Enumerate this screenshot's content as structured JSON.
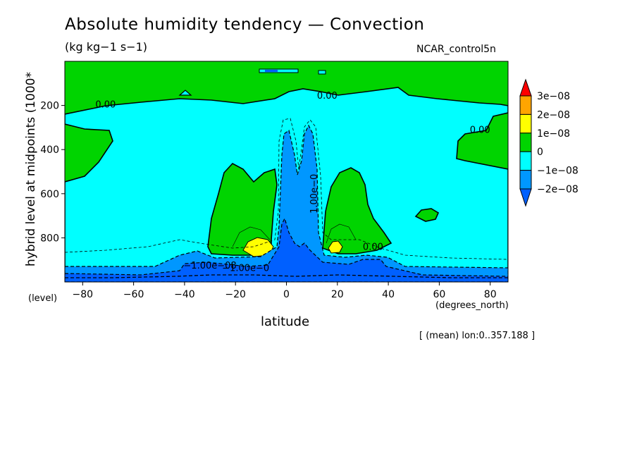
{
  "chart_data": {
    "type": "contour",
    "title": "Absolute humidity tendency — Convection",
    "subtitle": "(kg kg−1 s−1)",
    "dataset": "NCAR_control5n",
    "xlabel": "latitude",
    "x_unit": "(degrees_north)",
    "ylabel": "hybrid level at midpoints (1000*",
    "y_unit": "(level)",
    "note": "[ (mean) lon:0..357.188 ]",
    "xlim": [
      -87,
      87
    ],
    "ylim": [
      1000,
      0
    ],
    "x_ticks": [
      -80,
      -60,
      -40,
      -20,
      0,
      20,
      40,
      60,
      80
    ],
    "x_tick_labels": [
      "−80",
      "−60",
      "−40",
      "−20",
      "0",
      "20",
      "40",
      "60",
      "80"
    ],
    "y_ticks": [
      200,
      400,
      600,
      800
    ],
    "y_tick_labels": [
      "200",
      "400",
      "600",
      "800"
    ],
    "colorbar": {
      "labels": [
        "3e−08",
        "2e−08",
        "1e−08",
        "0",
        "−1e−08",
        "−2e−08"
      ],
      "colors": [
        "#ff0000",
        "#ffa500",
        "#ffff00",
        "#00d400",
        "#00ffff",
        "#0097ff",
        "#0060ff"
      ]
    },
    "contour_labels": [
      {
        "text": "0.00",
        "x": -71,
        "y": 210
      },
      {
        "text": "0.00",
        "x": 16,
        "y": 170
      },
      {
        "text": "0.00",
        "x": 76,
        "y": 325
      },
      {
        "text": "0.00",
        "x": 34,
        "y": 855
      },
      {
        "text": "1.00e−0",
        "x": 12,
        "y": 600,
        "angle": -90
      },
      {
        "text": "−1.00e−08",
        "x": -30,
        "y": 940
      },
      {
        "text": "−1.00e−0",
        "x": -16,
        "y": 950
      }
    ]
  }
}
